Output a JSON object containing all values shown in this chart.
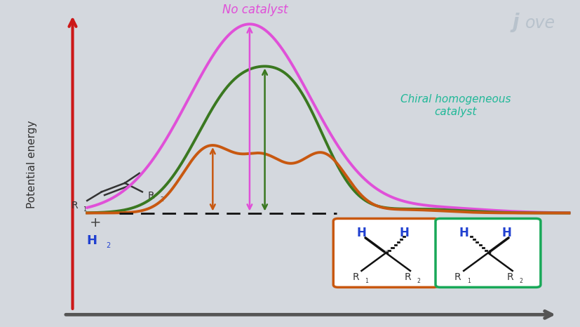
{
  "background_color": "#d4d8de",
  "curve_pink_color": "#e050d8",
  "curve_green_color": "#3a7820",
  "curve_orange_color": "#c85810",
  "arrow_pink_color": "#e050d8",
  "arrow_green_color": "#3a7820",
  "arrow_orange_color": "#c85810",
  "dashed_line_color": "#111111",
  "no_catalyst_text": "No catalyst",
  "chiral_text": "Chiral homogeneous\ncatalyst",
  "chiral_text_color": "#20b898",
  "h2_color": "#2040d0",
  "box_orange_color": "#c85810",
  "box_green_color": "#18a858",
  "y_axis_color": "#cc1818",
  "y_label": "Potential energy",
  "jove_color": "#b8c2cc",
  "label_color": "#333333",
  "h_label_color": "#2040d0"
}
